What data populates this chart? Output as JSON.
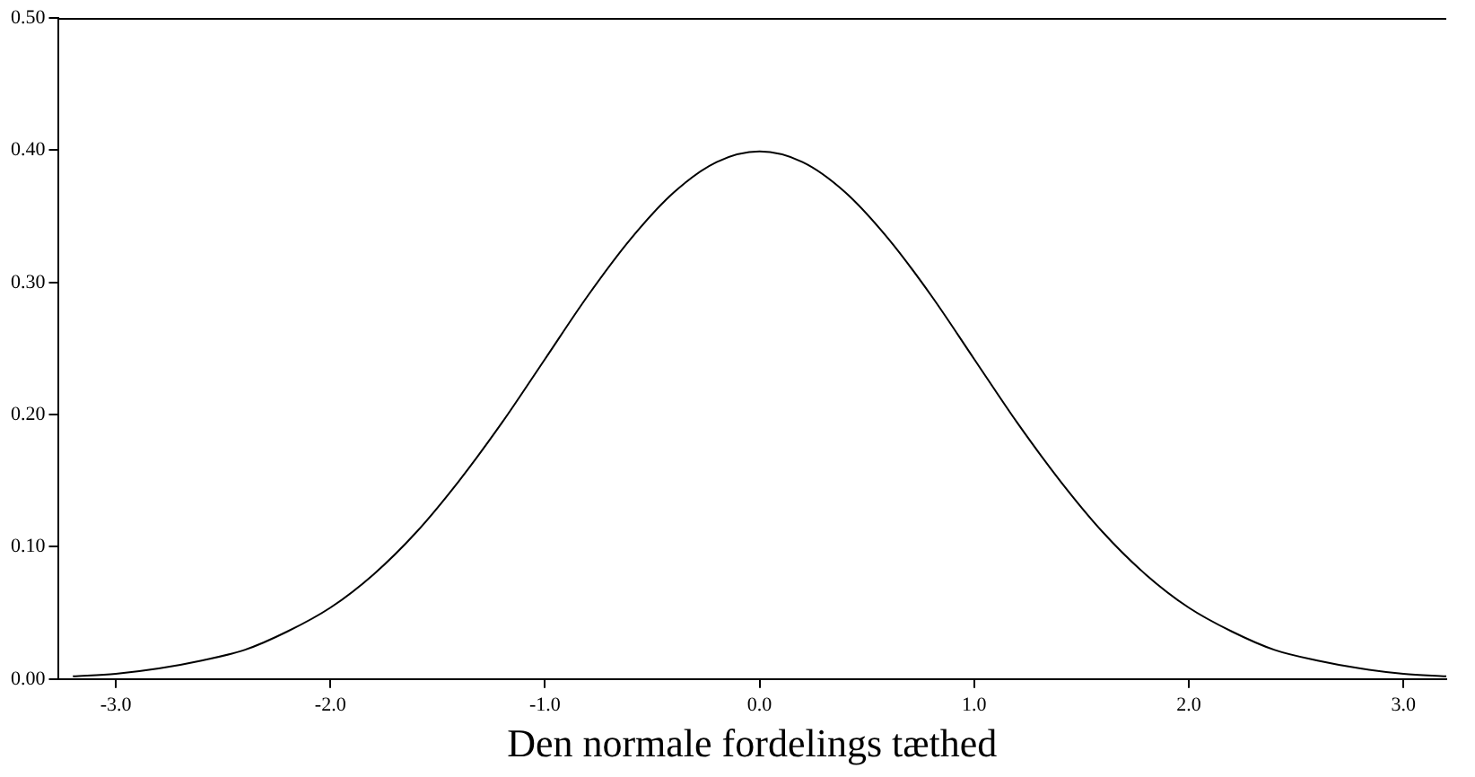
{
  "chart_data": {
    "type": "line",
    "xlabel": "Den normale fordelings tæthed",
    "x": [
      -3.2,
      -3.0,
      -2.8,
      -2.6,
      -2.4,
      -2.2,
      -2.0,
      -1.8,
      -1.6,
      -1.4,
      -1.2,
      -1.0,
      -0.8,
      -0.6,
      -0.4,
      -0.2,
      0.0,
      0.2,
      0.4,
      0.6,
      0.8,
      1.0,
      1.2,
      1.4,
      1.6,
      1.8,
      2.0,
      2.2,
      2.4,
      2.6,
      2.8,
      3.0,
      3.2
    ],
    "series": [
      {
        "color": "#000000",
        "values": [
          0.002,
          0.004,
          0.008,
          0.014,
          0.022,
          0.036,
          0.054,
          0.079,
          0.111,
          0.15,
          0.194,
          0.242,
          0.29,
          0.333,
          0.368,
          0.391,
          0.399,
          0.391,
          0.368,
          0.333,
          0.29,
          0.242,
          0.194,
          0.15,
          0.111,
          0.079,
          0.054,
          0.036,
          0.022,
          0.014,
          0.008,
          0.004,
          0.002
        ]
      }
    ],
    "xlim": [
      -3.27,
      3.2
    ],
    "ylim": [
      0,
      0.5
    ],
    "xticks": [
      {
        "value": -3,
        "label": "-3.0"
      },
      {
        "value": -2,
        "label": "-2.0"
      },
      {
        "value": -1,
        "label": "-1.0"
      },
      {
        "value": 0,
        "label": "0.0"
      },
      {
        "value": 1,
        "label": "1.0"
      },
      {
        "value": 2,
        "label": "2.0"
      },
      {
        "value": 3,
        "label": "3.0"
      }
    ],
    "yticks": [
      {
        "value": 0,
        "label": "0.00"
      },
      {
        "value": 0.1,
        "label": "0.10"
      },
      {
        "value": 0.2,
        "label": "0.20"
      },
      {
        "value": 0.3,
        "label": "0.30"
      },
      {
        "value": 0.4,
        "label": "0.40"
      },
      {
        "value": 0.5,
        "label": "0.50"
      }
    ],
    "marker": "none",
    "line_style": "solid",
    "grid": false,
    "legend": false
  }
}
